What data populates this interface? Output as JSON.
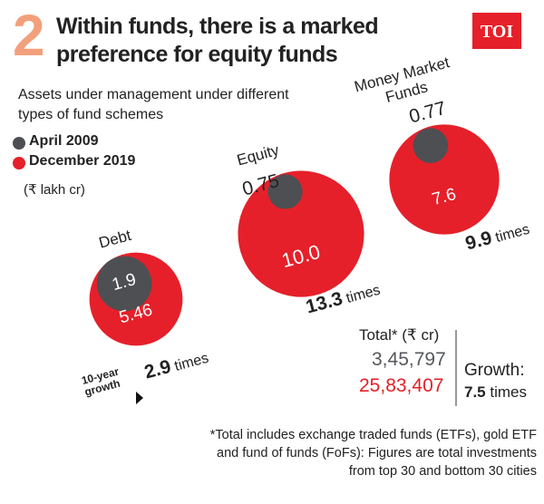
{
  "chart_data": {
    "type": "bubble",
    "badge": "2",
    "title": "Within funds, there is a marked preference for equity funds",
    "subtitle": "Assets under management under different types of fund schemes",
    "unit": "(₹ lakh cr)",
    "logo": "TOI",
    "categories": [
      "Debt",
      "Equity",
      "Money Market Funds"
    ],
    "series": [
      {
        "name": "April 2009",
        "color": "#4d4f53",
        "values": [
          1.9,
          0.75,
          0.77
        ],
        "value_labels": [
          "1.9",
          "0.75",
          "0.77"
        ]
      },
      {
        "name": "December 2019",
        "color": "#e5202a",
        "values": [
          5.46,
          10.0,
          7.6
        ],
        "value_labels": [
          "5.46",
          "10.0",
          "7.6"
        ]
      }
    ],
    "growth": {
      "prefix": "10-year growth",
      "values": [
        2.9,
        13.3,
        9.9
      ],
      "unit": "times"
    },
    "total": {
      "label": "Total* (₹ cr)",
      "values": [
        345797,
        2583407
      ],
      "value_labels": [
        "3,45,797",
        "25,83,407"
      ],
      "growth_label": "Growth:",
      "growth": 7.5,
      "growth_unit": "times"
    },
    "footnote": "*Total includes exchange traded funds (ETFs), gold ETF and fund of funds (FoFs): Figures are total investments from top 30 and bottom 30 cities"
  }
}
